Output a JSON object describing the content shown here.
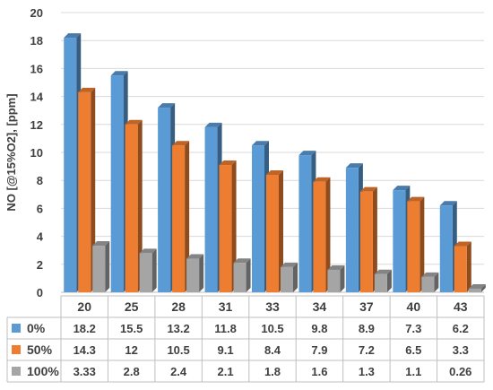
{
  "chart_data": {
    "type": "bar",
    "title": "",
    "xlabel": "",
    "ylabel": "NO [@15%O2], [ppm]",
    "ylim": [
      0,
      20
    ],
    "ytick_step": 2,
    "yticks": [
      "0",
      "2",
      "4",
      "6",
      "8",
      "10",
      "12",
      "14",
      "16",
      "18",
      "20"
    ],
    "grid": true,
    "categories": [
      "20",
      "25",
      "28",
      "31",
      "33",
      "34",
      "37",
      "40",
      "43"
    ],
    "series": [
      {
        "name": "0%",
        "color": "#5B9BD5",
        "values": [
          18.2,
          15.5,
          13.2,
          11.8,
          10.5,
          9.8,
          8.9,
          7.3,
          6.2
        ],
        "labels": [
          "18.2",
          "15.5",
          "13.2",
          "11.8",
          "10.5",
          "9.8",
          "8.9",
          "7.3",
          "6.2"
        ]
      },
      {
        "name": "50%",
        "color": "#ED7D31",
        "values": [
          14.3,
          12,
          10.5,
          9.1,
          8.4,
          7.9,
          7.2,
          6.5,
          3.3
        ],
        "labels": [
          "14.3",
          "12",
          "10.5",
          "9.1",
          "8.4",
          "7.9",
          "7.2",
          "6.5",
          "3.3"
        ]
      },
      {
        "name": "100%",
        "color": "#A5A5A5",
        "values": [
          3.33,
          2.8,
          2.4,
          2.1,
          1.8,
          1.6,
          1.3,
          1.1,
          0.26
        ],
        "labels": [
          "3.33",
          "2.8",
          "2.4",
          "2.1",
          "1.8",
          "1.6",
          "1.3",
          "1.1",
          "0.26"
        ]
      }
    ],
    "data_table": true,
    "legend": "data-table-left"
  }
}
